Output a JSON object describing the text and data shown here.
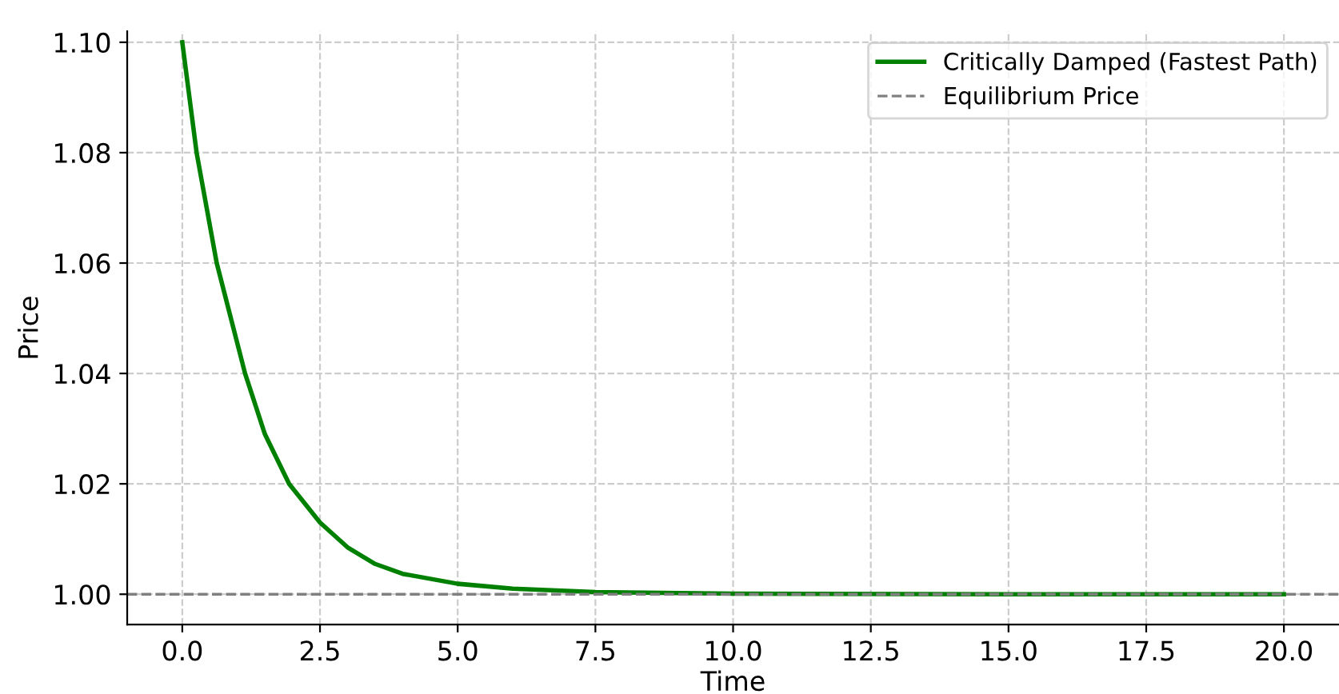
{
  "chart_data": {
    "type": "line",
    "xlabel": "Time",
    "ylabel": "Price",
    "series": [
      {
        "name": "Critically Damped (Fastest Path)",
        "color": "#008000",
        "x": [
          0,
          0.26,
          0.625,
          1.14,
          1.5,
          1.94,
          2.5,
          3,
          3.5,
          4,
          5,
          6,
          7.5,
          10,
          15,
          20
        ],
        "values": [
          1.1,
          1.08,
          1.06,
          1.04,
          1.029,
          1.02,
          1.013,
          1.0085,
          1.0055,
          1.0037,
          1.0019,
          1.001,
          1.0004,
          1.0001,
          1.0,
          1.0
        ]
      }
    ],
    "ref_lines": [
      {
        "axis": "y",
        "value": 1.0,
        "label": "Equilibrium Price",
        "color": "#808080",
        "line_style": "dashed"
      }
    ],
    "xlim": [
      -1,
      21
    ],
    "ylim": [
      0.9945,
      1.102
    ],
    "xticks": [
      {
        "value": 0,
        "label": "0.0"
      },
      {
        "value": 2.5,
        "label": "2.5"
      },
      {
        "value": 5,
        "label": "5.0"
      },
      {
        "value": 7.5,
        "label": "7.5"
      },
      {
        "value": 10,
        "label": "10.0"
      },
      {
        "value": 12.5,
        "label": "12.5"
      },
      {
        "value": 15,
        "label": "15.0"
      },
      {
        "value": 17.5,
        "label": "17.5"
      },
      {
        "value": 20,
        "label": "20.0"
      }
    ],
    "yticks": [
      {
        "value": 1.0,
        "label": "1.00"
      },
      {
        "value": 1.02,
        "label": "1.02"
      },
      {
        "value": 1.04,
        "label": "1.04"
      },
      {
        "value": 1.06,
        "label": "1.06"
      },
      {
        "value": 1.08,
        "label": "1.08"
      },
      {
        "value": 1.1,
        "label": "1.10"
      }
    ],
    "grid": true,
    "legend": "top right",
    "line_style": "solid",
    "marker": "none"
  }
}
